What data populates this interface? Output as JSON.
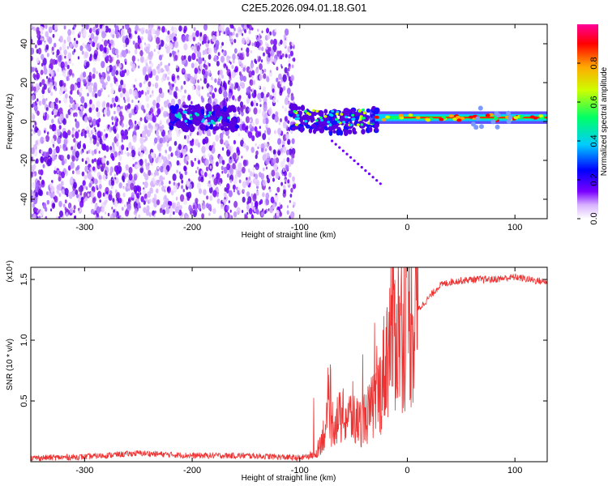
{
  "title": "C2E5.2026.094.01.18.G01",
  "chart_data": [
    {
      "type": "heatmap",
      "xlabel": "Height of straight line (km)",
      "ylabel": "Frequency (Hz)",
      "xlim": [
        -350,
        130
      ],
      "ylim": [
        -50,
        50
      ],
      "x_ticks": [
        -300,
        -200,
        -100,
        0,
        100
      ],
      "y_ticks": [
        -40,
        -20,
        0,
        20,
        40
      ],
      "colorbar": {
        "label": "Normalized spectral amplitude",
        "range": [
          0,
          1
        ],
        "ticks": [
          "0.0",
          "0.2",
          "0.4",
          "0.6",
          "0.8"
        ],
        "colors": [
          "#ffffff",
          "#cc99ff",
          "#7a00ff",
          "#0000ff",
          "#00ccff",
          "#00ff66",
          "#ccff00",
          "#ffaa00",
          "#ff0000",
          "#ff0099"
        ]
      },
      "signal": {
        "carrier_frequency_hz": 2,
        "noise_region_km": [
          -350,
          -105
        ],
        "signal_region_km": [
          -220,
          130
        ],
        "branch": {
          "from": [
            -70,
            -10
          ],
          "to": [
            -25,
            -32
          ]
        }
      }
    },
    {
      "type": "line",
      "xlabel": "Height of straight line (km)",
      "ylabel": "SNR (10 * v/v)",
      "multiplier_label": "(x10⁴)",
      "xlim": [
        -350,
        130
      ],
      "ylim": [
        0,
        1.6
      ],
      "x_ticks": [
        -300,
        -200,
        -100,
        0,
        100
      ],
      "y_ticks": [
        0.5,
        1.0,
        1.5
      ],
      "y_tick_labels": [
        "0.5",
        "1.0",
        "1.5"
      ],
      "y_top_label": "1.5",
      "color": "#ee3333",
      "series": [
        {
          "x": [
            -350,
            -300,
            -250,
            -200,
            -150,
            -120,
            -100,
            -85,
            -75,
            -65,
            -55,
            -45,
            -35,
            -25,
            -20,
            -15,
            -10,
            0,
            10,
            20,
            30,
            40,
            60,
            80,
            100,
            120,
            130
          ],
          "y": [
            0.03,
            0.04,
            0.07,
            0.05,
            0.05,
            0.04,
            0.03,
            0.06,
            0.3,
            0.35,
            0.38,
            0.32,
            0.4,
            0.6,
            0.85,
            1.1,
            1.1,
            1.15,
            1.25,
            1.35,
            1.45,
            1.48,
            1.5,
            1.5,
            1.52,
            1.49,
            1.48
          ]
        }
      ]
    }
  ]
}
